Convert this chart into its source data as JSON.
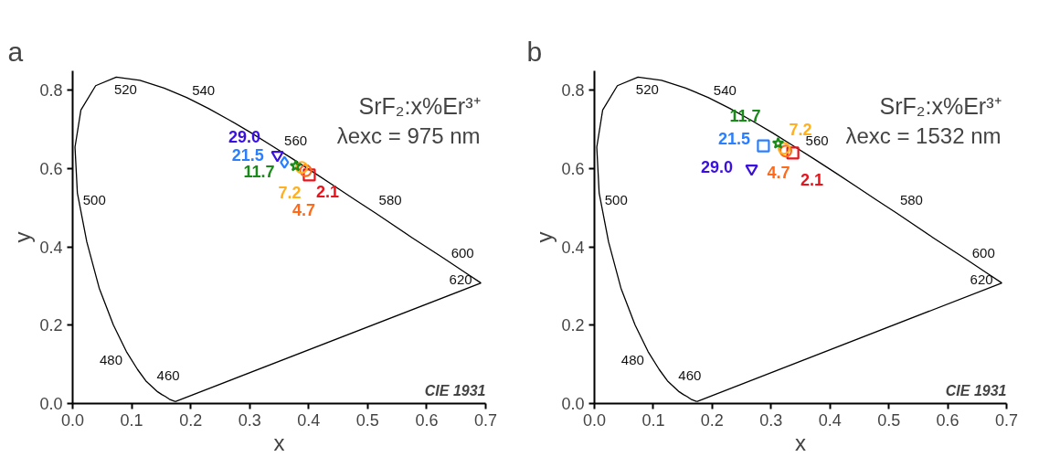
{
  "chart_data": [
    {
      "type": "scatter",
      "title": "a",
      "xlabel": "x",
      "ylabel": "y",
      "xlim": [
        0,
        0.7
      ],
      "ylim": [
        0,
        0.85
      ],
      "xticks": [
        {
          "value": 0,
          "label": "0.0"
        },
        0.1,
        0.2,
        0.3,
        0.4,
        0.5,
        0.6,
        0.7
      ],
      "yticks": [
        {
          "value": 0,
          "label": "0.0"
        },
        0.2,
        0.4,
        0.6,
        0.8
      ],
      "annotations": [
        "SrF₂:x%Er³⁺",
        "λexc = 975 nm",
        "CIE 1931",
        {
          "text": "460",
          "x": 0.144,
          "y": 0.0297
        },
        {
          "text": "480",
          "x": 0.0913,
          "y": 0.1327
        },
        {
          "text": "500",
          "x": 0.0082,
          "y": 0.5384
        },
        {
          "text": "520",
          "x": 0.0743,
          "y": 0.8338
        },
        {
          "text": "540",
          "x": 0.2296,
          "y": 0.7543
        },
        {
          "text": "560",
          "x": 0.3731,
          "y": 0.6245
        },
        {
          "text": "580",
          "x": 0.5125,
          "y": 0.4866
        },
        {
          "text": "600",
          "x": 0.627,
          "y": 0.3725
        },
        {
          "text": "620",
          "x": 0.6915,
          "y": 0.3083
        }
      ],
      "series": [
        {
          "type": "line",
          "color": "#000000",
          "x": [
            0.174,
            0.164,
            0.157,
            0.151,
            0.144,
            0.124,
            0.11,
            0.091,
            0.069,
            0.045,
            0.024,
            0.008,
            0.004,
            0.014,
            0.039,
            0.074,
            0.114,
            0.155,
            0.193,
            0.23,
            0.266,
            0.302,
            0.337,
            0.373,
            0.409,
            0.444,
            0.479,
            0.513,
            0.575,
            0.627,
            0.666,
            0.692
          ],
          "values": [
            0.005,
            0.011,
            0.018,
            0.023,
            0.03,
            0.058,
            0.087,
            0.133,
            0.201,
            0.295,
            0.413,
            0.538,
            0.655,
            0.75,
            0.812,
            0.834,
            0.826,
            0.806,
            0.782,
            0.754,
            0.724,
            0.692,
            0.659,
            0.625,
            0.59,
            0.555,
            0.52,
            0.487,
            0.424,
            0.373,
            0.334,
            0.308
          ]
        },
        {
          "type": "line",
          "color": "#000000",
          "x": [
            0.692,
            0.174
          ],
          "values": [
            0.308,
            0.005
          ]
        },
        {
          "name": "2.1",
          "color": "#e8141c",
          "marker": "square",
          "x": [
            0.401
          ],
          "values": [
            0.584
          ]
        },
        {
          "name": "4.7",
          "color": "#ff6a1a",
          "marker": "circle",
          "x": [
            0.395
          ],
          "values": [
            0.595
          ]
        },
        {
          "name": "7.2",
          "color": "#ffb020",
          "marker": "circle",
          "x": [
            0.388
          ],
          "values": [
            0.603
          ]
        },
        {
          "name": "11.7",
          "color": "#1a8a1a",
          "marker": "star",
          "x": [
            0.378
          ],
          "values": [
            0.607
          ]
        },
        {
          "name": "21.5",
          "color": "#2a7fff",
          "marker": "diamond",
          "x": [
            0.359
          ],
          "values": [
            0.616
          ]
        },
        {
          "name": "29.0",
          "color": "#3a10e0",
          "marker": "triangle",
          "x": [
            0.347
          ],
          "values": [
            0.635
          ]
        }
      ]
    },
    {
      "type": "scatter",
      "title": "b",
      "xlabel": "x",
      "ylabel": "y",
      "xlim": [
        0,
        0.7
      ],
      "ylim": [
        0,
        0.85
      ],
      "xticks": [
        {
          "value": 0,
          "label": "0.0"
        },
        0.1,
        0.2,
        0.3,
        0.4,
        0.5,
        0.6,
        0.7
      ],
      "yticks": [
        {
          "value": 0,
          "label": "0.0"
        },
        0.2,
        0.4,
        0.6,
        0.8
      ],
      "annotations": [
        "SrF₂:x%Er³⁺",
        "λexc = 1532 nm",
        "CIE 1931",
        {
          "text": "460",
          "x": 0.144,
          "y": 0.0297
        },
        {
          "text": "480",
          "x": 0.0913,
          "y": 0.1327
        },
        {
          "text": "500",
          "x": 0.0082,
          "y": 0.5384
        },
        {
          "text": "520",
          "x": 0.0743,
          "y": 0.8338
        },
        {
          "text": "540",
          "x": 0.2296,
          "y": 0.7543
        },
        {
          "text": "560",
          "x": 0.3731,
          "y": 0.6245
        },
        {
          "text": "580",
          "x": 0.5125,
          "y": 0.4866
        },
        {
          "text": "600",
          "x": 0.627,
          "y": 0.3725
        },
        {
          "text": "620",
          "x": 0.6915,
          "y": 0.3083
        }
      ],
      "series": [
        {
          "type": "line",
          "color": "#000000",
          "x": [
            0.174,
            0.164,
            0.157,
            0.151,
            0.144,
            0.124,
            0.11,
            0.091,
            0.069,
            0.045,
            0.024,
            0.008,
            0.004,
            0.014,
            0.039,
            0.074,
            0.114,
            0.155,
            0.193,
            0.23,
            0.266,
            0.302,
            0.337,
            0.373,
            0.409,
            0.444,
            0.479,
            0.513,
            0.575,
            0.627,
            0.666,
            0.692
          ],
          "values": [
            0.005,
            0.011,
            0.018,
            0.023,
            0.03,
            0.058,
            0.087,
            0.133,
            0.201,
            0.295,
            0.413,
            0.538,
            0.655,
            0.75,
            0.812,
            0.834,
            0.826,
            0.806,
            0.782,
            0.754,
            0.724,
            0.692,
            0.659,
            0.625,
            0.59,
            0.555,
            0.52,
            0.487,
            0.424,
            0.373,
            0.334,
            0.308
          ]
        },
        {
          "type": "line",
          "color": "#000000",
          "x": [
            0.692,
            0.174
          ],
          "values": [
            0.308,
            0.005
          ]
        },
        {
          "name": "2.1",
          "color": "#e8141c",
          "marker": "square",
          "x": [
            0.337
          ],
          "values": [
            0.64
          ]
        },
        {
          "name": "4.7",
          "color": "#ff6a1a",
          "marker": "circle",
          "x": [
            0.325
          ],
          "values": [
            0.645
          ]
        },
        {
          "name": "7.2",
          "color": "#ffb020",
          "marker": "circle",
          "x": [
            0.322
          ],
          "values": [
            0.652
          ]
        },
        {
          "name": "11.7",
          "color": "#1a8a1a",
          "marker": "star",
          "x": [
            0.312
          ],
          "values": [
            0.665
          ]
        },
        {
          "name": "21.5",
          "color": "#2a7fff",
          "marker": "square",
          "x": [
            0.287
          ],
          "values": [
            0.658
          ]
        },
        {
          "name": "29.0",
          "color": "#3a10e0",
          "marker": "triangle",
          "x": [
            0.267
          ],
          "values": [
            0.6
          ]
        }
      ]
    }
  ]
}
